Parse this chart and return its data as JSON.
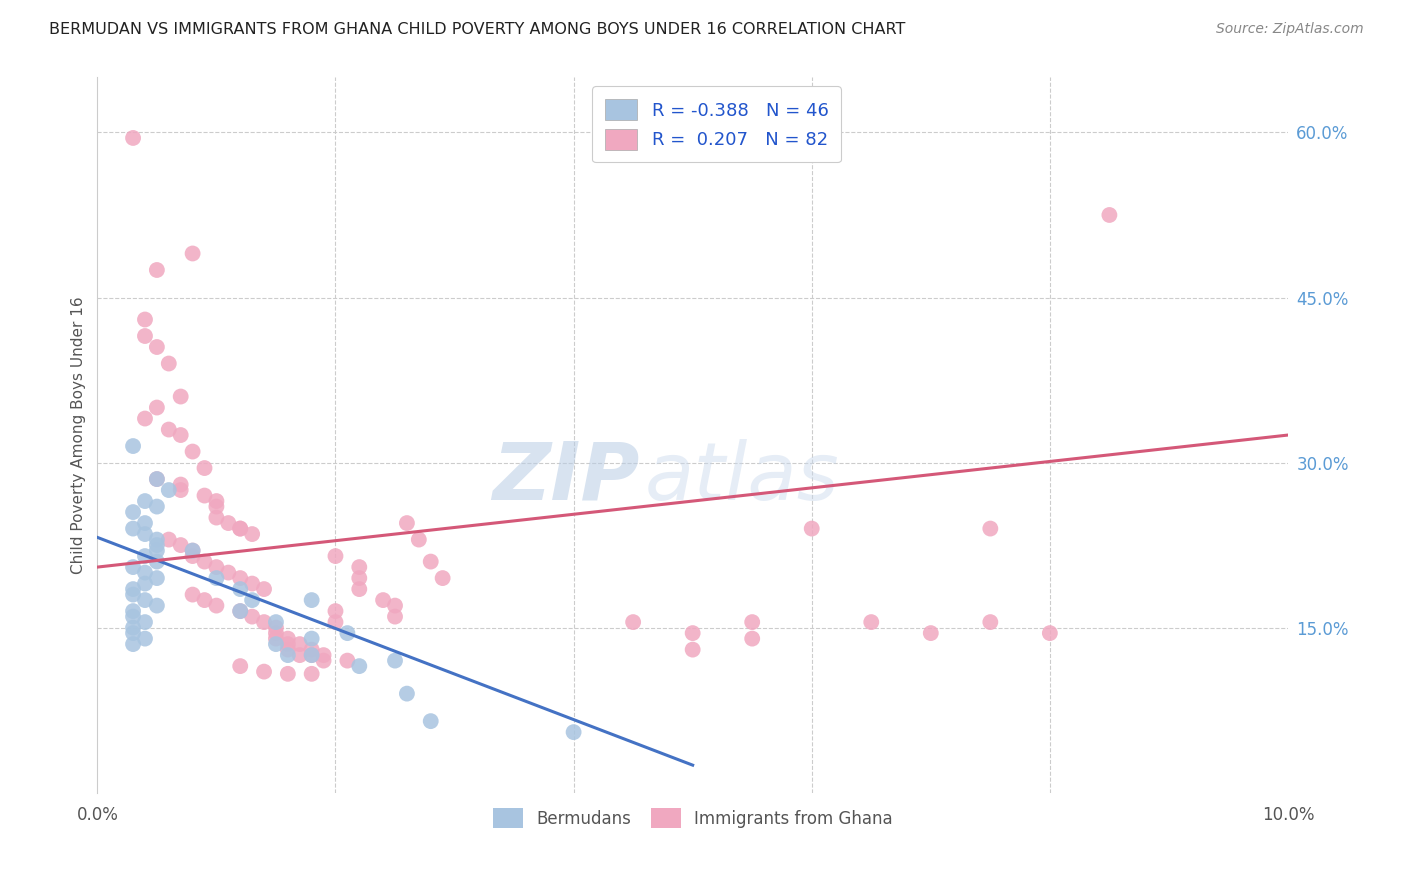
{
  "title": "BERMUDAN VS IMMIGRANTS FROM GHANA CHILD POVERTY AMONG BOYS UNDER 16 CORRELATION CHART",
  "source": "Source: ZipAtlas.com",
  "ylabel": "Child Poverty Among Boys Under 16",
  "ytick_labels": [
    "60.0%",
    "45.0%",
    "30.0%",
    "15.0%"
  ],
  "ytick_values": [
    0.6,
    0.45,
    0.3,
    0.15
  ],
  "xlim": [
    0.0,
    0.1
  ],
  "ylim": [
    0.0,
    0.65
  ],
  "R_bermuda": -0.388,
  "N_bermuda": 46,
  "R_ghana": 0.207,
  "N_ghana": 82,
  "blue_scatter_color": "#a8c4e0",
  "pink_scatter_color": "#f0a8c0",
  "trend_blue": "#4472c4",
  "trend_pink": "#d45878",
  "blue_line": [
    [
      0.0,
      0.232
    ],
    [
      0.05,
      0.025
    ]
  ],
  "pink_line": [
    [
      0.0,
      0.205
    ],
    [
      0.1,
      0.325
    ]
  ],
  "bermuda_points": [
    [
      0.003,
      0.315
    ],
    [
      0.005,
      0.285
    ],
    [
      0.006,
      0.275
    ],
    [
      0.004,
      0.265
    ],
    [
      0.005,
      0.26
    ],
    [
      0.003,
      0.255
    ],
    [
      0.004,
      0.245
    ],
    [
      0.003,
      0.24
    ],
    [
      0.004,
      0.235
    ],
    [
      0.005,
      0.23
    ],
    [
      0.005,
      0.225
    ],
    [
      0.005,
      0.22
    ],
    [
      0.004,
      0.215
    ],
    [
      0.005,
      0.21
    ],
    [
      0.003,
      0.205
    ],
    [
      0.004,
      0.2
    ],
    [
      0.005,
      0.195
    ],
    [
      0.004,
      0.19
    ],
    [
      0.003,
      0.185
    ],
    [
      0.003,
      0.18
    ],
    [
      0.004,
      0.175
    ],
    [
      0.005,
      0.17
    ],
    [
      0.003,
      0.165
    ],
    [
      0.003,
      0.16
    ],
    [
      0.004,
      0.155
    ],
    [
      0.003,
      0.15
    ],
    [
      0.003,
      0.145
    ],
    [
      0.004,
      0.14
    ],
    [
      0.003,
      0.135
    ],
    [
      0.008,
      0.22
    ],
    [
      0.01,
      0.195
    ],
    [
      0.012,
      0.185
    ],
    [
      0.012,
      0.165
    ],
    [
      0.013,
      0.175
    ],
    [
      0.015,
      0.155
    ],
    [
      0.015,
      0.135
    ],
    [
      0.016,
      0.125
    ],
    [
      0.018,
      0.175
    ],
    [
      0.018,
      0.14
    ],
    [
      0.018,
      0.125
    ],
    [
      0.021,
      0.145
    ],
    [
      0.022,
      0.115
    ],
    [
      0.025,
      0.12
    ],
    [
      0.026,
      0.09
    ],
    [
      0.028,
      0.065
    ],
    [
      0.04,
      0.055
    ]
  ],
  "ghana_points": [
    [
      0.003,
      0.595
    ],
    [
      0.005,
      0.475
    ],
    [
      0.004,
      0.43
    ],
    [
      0.004,
      0.415
    ],
    [
      0.005,
      0.405
    ],
    [
      0.008,
      0.49
    ],
    [
      0.006,
      0.39
    ],
    [
      0.007,
      0.36
    ],
    [
      0.005,
      0.35
    ],
    [
      0.004,
      0.34
    ],
    [
      0.006,
      0.33
    ],
    [
      0.007,
      0.325
    ],
    [
      0.008,
      0.31
    ],
    [
      0.009,
      0.295
    ],
    [
      0.005,
      0.285
    ],
    [
      0.007,
      0.28
    ],
    [
      0.007,
      0.275
    ],
    [
      0.009,
      0.27
    ],
    [
      0.01,
      0.265
    ],
    [
      0.01,
      0.26
    ],
    [
      0.01,
      0.25
    ],
    [
      0.011,
      0.245
    ],
    [
      0.012,
      0.24
    ],
    [
      0.012,
      0.24
    ],
    [
      0.013,
      0.235
    ],
    [
      0.006,
      0.23
    ],
    [
      0.007,
      0.225
    ],
    [
      0.008,
      0.22
    ],
    [
      0.008,
      0.215
    ],
    [
      0.009,
      0.21
    ],
    [
      0.01,
      0.205
    ],
    [
      0.011,
      0.2
    ],
    [
      0.012,
      0.195
    ],
    [
      0.013,
      0.19
    ],
    [
      0.014,
      0.185
    ],
    [
      0.008,
      0.18
    ],
    [
      0.009,
      0.175
    ],
    [
      0.01,
      0.17
    ],
    [
      0.012,
      0.165
    ],
    [
      0.013,
      0.16
    ],
    [
      0.014,
      0.155
    ],
    [
      0.015,
      0.15
    ],
    [
      0.015,
      0.145
    ],
    [
      0.016,
      0.14
    ],
    [
      0.017,
      0.135
    ],
    [
      0.016,
      0.13
    ],
    [
      0.017,
      0.125
    ],
    [
      0.018,
      0.125
    ],
    [
      0.019,
      0.12
    ],
    [
      0.012,
      0.115
    ],
    [
      0.014,
      0.11
    ],
    [
      0.016,
      0.108
    ],
    [
      0.018,
      0.108
    ],
    [
      0.02,
      0.165
    ],
    [
      0.02,
      0.155
    ],
    [
      0.02,
      0.215
    ],
    [
      0.022,
      0.205
    ],
    [
      0.022,
      0.195
    ],
    [
      0.022,
      0.185
    ],
    [
      0.024,
      0.175
    ],
    [
      0.025,
      0.17
    ],
    [
      0.025,
      0.16
    ],
    [
      0.026,
      0.245
    ],
    [
      0.027,
      0.23
    ],
    [
      0.028,
      0.21
    ],
    [
      0.029,
      0.195
    ],
    [
      0.015,
      0.14
    ],
    [
      0.016,
      0.135
    ],
    [
      0.018,
      0.13
    ],
    [
      0.019,
      0.125
    ],
    [
      0.021,
      0.12
    ],
    [
      0.06,
      0.24
    ],
    [
      0.065,
      0.155
    ],
    [
      0.07,
      0.145
    ],
    [
      0.075,
      0.24
    ],
    [
      0.075,
      0.155
    ],
    [
      0.08,
      0.145
    ],
    [
      0.085,
      0.525
    ],
    [
      0.055,
      0.155
    ],
    [
      0.055,
      0.14
    ],
    [
      0.05,
      0.145
    ],
    [
      0.05,
      0.13
    ],
    [
      0.045,
      0.155
    ]
  ]
}
